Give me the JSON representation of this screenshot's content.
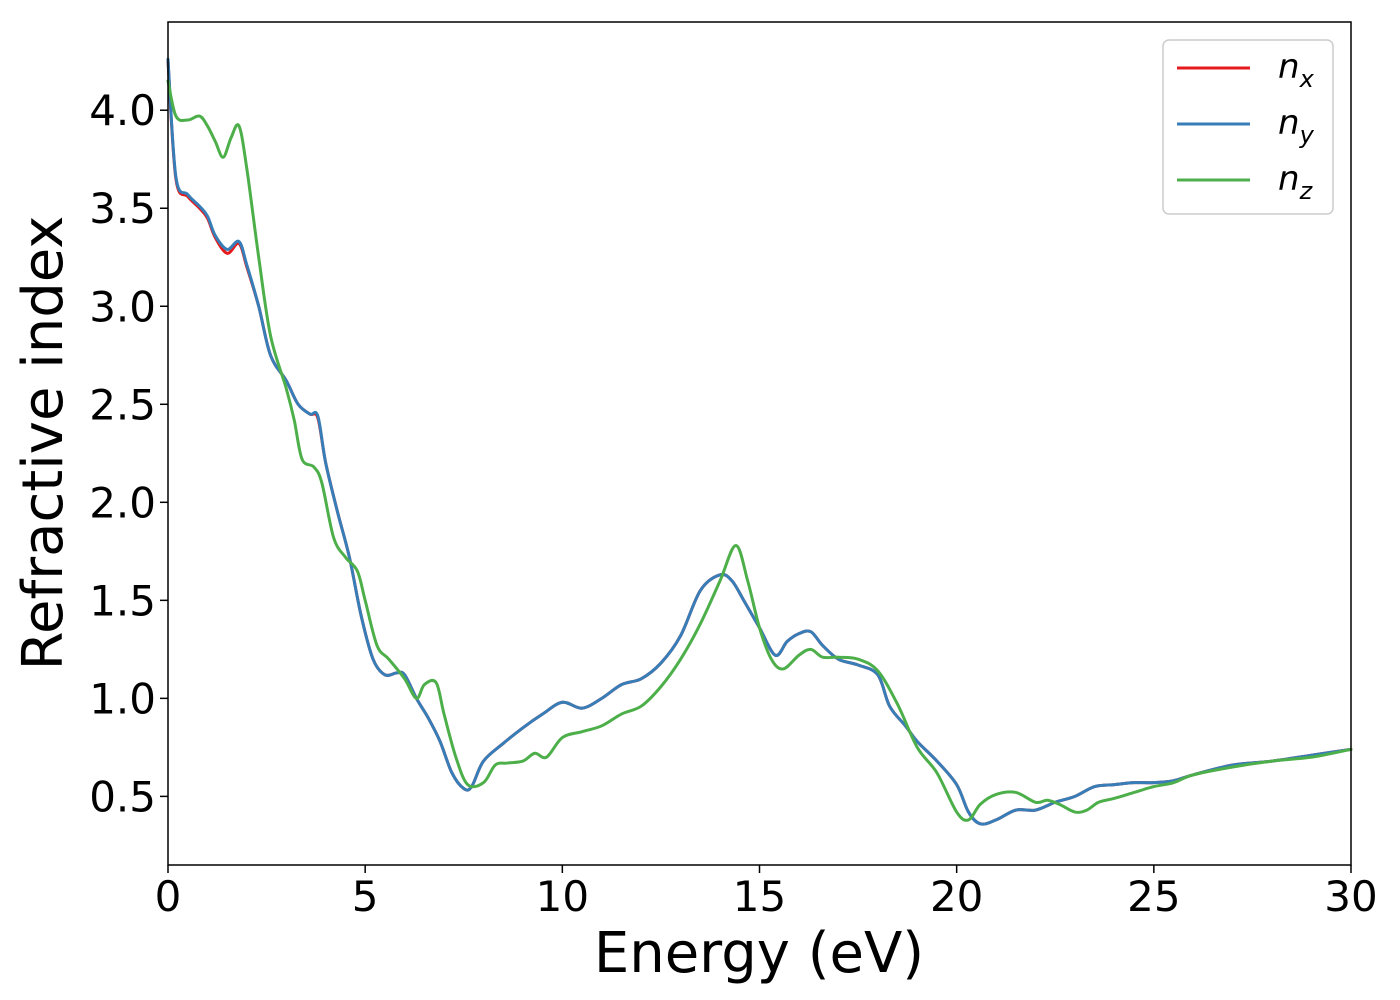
{
  "chart_data": {
    "type": "line",
    "title": "",
    "xlabel": "Energy (eV)",
    "ylabel": "Refractive index",
    "xlim": [
      0,
      30
    ],
    "ylim": [
      0.15,
      4.45
    ],
    "xticks": [
      0,
      5,
      10,
      15,
      20,
      25,
      30
    ],
    "xtick_labels": [
      "0",
      "5",
      "10",
      "15",
      "20",
      "25",
      "30"
    ],
    "yticks": [
      0.5,
      1.0,
      1.5,
      2.0,
      2.5,
      3.0,
      3.5,
      4.0
    ],
    "ytick_labels": [
      "0.5",
      "1.0",
      "1.5",
      "2.0",
      "2.5",
      "3.0",
      "3.5",
      "4.0"
    ],
    "grid": false,
    "legend_position": "top-right",
    "series": [
      {
        "name": "n",
        "subscript": "x",
        "color": "#e41a1c",
        "x": [
          0,
          0.2,
          0.5,
          0.8,
          1.0,
          1.2,
          1.5,
          1.8,
          2.0,
          2.3,
          2.6,
          3.0,
          3.3,
          3.6,
          3.8,
          4.0,
          4.3,
          4.6,
          4.9,
          5.2,
          5.5,
          5.8,
          6.0,
          6.3,
          6.6,
          6.9,
          7.2,
          7.5,
          7.7,
          8.0,
          8.5,
          9.0,
          9.5,
          10.0,
          10.5,
          11.0,
          11.5,
          12.0,
          12.5,
          13.0,
          13.5,
          14.0,
          14.3,
          14.6,
          15.0,
          15.4,
          15.7,
          16.0,
          16.3,
          16.6,
          17.0,
          17.5,
          18.0,
          18.3,
          18.7,
          19.0,
          19.5,
          20.0,
          20.3,
          20.6,
          21.0,
          21.5,
          22.0,
          22.5,
          23.0,
          23.5,
          24.0,
          24.5,
          25.0,
          25.5,
          26.0,
          27.0,
          28.0,
          29.0,
          30.0
        ],
        "y": [
          4.25,
          3.65,
          3.56,
          3.5,
          3.45,
          3.35,
          3.27,
          3.32,
          3.2,
          3.0,
          2.75,
          2.62,
          2.5,
          2.45,
          2.43,
          2.2,
          1.95,
          1.72,
          1.42,
          1.2,
          1.12,
          1.13,
          1.12,
          1.0,
          0.9,
          0.78,
          0.62,
          0.54,
          0.55,
          0.68,
          0.77,
          0.85,
          0.92,
          0.98,
          0.95,
          1.0,
          1.07,
          1.1,
          1.18,
          1.32,
          1.55,
          1.63,
          1.6,
          1.5,
          1.36,
          1.22,
          1.29,
          1.33,
          1.34,
          1.27,
          1.2,
          1.17,
          1.12,
          0.96,
          0.86,
          0.78,
          0.68,
          0.56,
          0.42,
          0.36,
          0.38,
          0.43,
          0.43,
          0.47,
          0.5,
          0.55,
          0.56,
          0.57,
          0.57,
          0.58,
          0.61,
          0.66,
          0.68,
          0.71,
          0.74
        ]
      },
      {
        "name": "n",
        "subscript": "y",
        "color": "#377eb8",
        "x": [
          0,
          0.2,
          0.5,
          0.8,
          1.0,
          1.2,
          1.5,
          1.8,
          2.0,
          2.3,
          2.6,
          3.0,
          3.3,
          3.6,
          3.8,
          4.0,
          4.3,
          4.6,
          4.9,
          5.2,
          5.5,
          5.8,
          6.0,
          6.3,
          6.6,
          6.9,
          7.2,
          7.5,
          7.7,
          8.0,
          8.5,
          9.0,
          9.5,
          10.0,
          10.5,
          11.0,
          11.5,
          12.0,
          12.5,
          13.0,
          13.5,
          14.0,
          14.3,
          14.6,
          15.0,
          15.4,
          15.7,
          16.0,
          16.3,
          16.6,
          17.0,
          17.5,
          18.0,
          18.3,
          18.7,
          19.0,
          19.5,
          20.0,
          20.3,
          20.6,
          21.0,
          21.5,
          22.0,
          22.5,
          23.0,
          23.5,
          24.0,
          24.5,
          25.0,
          25.5,
          26.0,
          27.0,
          28.0,
          29.0,
          30.0
        ],
        "y": [
          4.26,
          3.66,
          3.57,
          3.51,
          3.46,
          3.36,
          3.29,
          3.33,
          3.21,
          3.0,
          2.75,
          2.62,
          2.5,
          2.45,
          2.44,
          2.2,
          1.95,
          1.72,
          1.42,
          1.2,
          1.12,
          1.13,
          1.12,
          1.0,
          0.9,
          0.78,
          0.62,
          0.54,
          0.55,
          0.68,
          0.77,
          0.85,
          0.92,
          0.98,
          0.95,
          1.0,
          1.07,
          1.1,
          1.18,
          1.32,
          1.55,
          1.63,
          1.6,
          1.5,
          1.36,
          1.22,
          1.29,
          1.33,
          1.34,
          1.27,
          1.2,
          1.17,
          1.12,
          0.96,
          0.86,
          0.78,
          0.68,
          0.56,
          0.42,
          0.36,
          0.38,
          0.43,
          0.43,
          0.47,
          0.5,
          0.55,
          0.56,
          0.57,
          0.57,
          0.58,
          0.61,
          0.66,
          0.68,
          0.71,
          0.74
        ]
      },
      {
        "name": "n",
        "subscript": "z",
        "color": "#4daf4a",
        "x": [
          0,
          0.2,
          0.5,
          0.8,
          1.0,
          1.2,
          1.4,
          1.6,
          1.8,
          2.0,
          2.3,
          2.6,
          3.0,
          3.2,
          3.4,
          3.7,
          3.9,
          4.2,
          4.5,
          4.8,
          5.0,
          5.3,
          5.6,
          6.0,
          6.3,
          6.5,
          6.8,
          7.0,
          7.3,
          7.6,
          8.0,
          8.3,
          8.6,
          9.0,
          9.3,
          9.6,
          10.0,
          10.5,
          11.0,
          11.5,
          12.0,
          12.5,
          13.0,
          13.5,
          14.0,
          14.4,
          14.7,
          15.0,
          15.3,
          15.6,
          16.0,
          16.3,
          16.6,
          17.0,
          17.5,
          18.0,
          18.5,
          19.0,
          19.5,
          20.0,
          20.3,
          20.6,
          21.0,
          21.5,
          22.0,
          22.3,
          22.6,
          23.0,
          23.3,
          23.6,
          24.0,
          24.5,
          25.0,
          25.5,
          26.0,
          27.0,
          28.0,
          29.0,
          30.0
        ],
        "y": [
          4.15,
          3.97,
          3.95,
          3.97,
          3.92,
          3.84,
          3.76,
          3.86,
          3.92,
          3.7,
          3.25,
          2.85,
          2.58,
          2.42,
          2.22,
          2.18,
          2.1,
          1.82,
          1.72,
          1.65,
          1.5,
          1.27,
          1.2,
          1.1,
          1.0,
          1.07,
          1.08,
          0.92,
          0.7,
          0.56,
          0.57,
          0.66,
          0.67,
          0.68,
          0.72,
          0.7,
          0.8,
          0.83,
          0.86,
          0.92,
          0.96,
          1.06,
          1.2,
          1.38,
          1.6,
          1.78,
          1.6,
          1.36,
          1.2,
          1.15,
          1.22,
          1.25,
          1.21,
          1.21,
          1.2,
          1.14,
          0.97,
          0.75,
          0.62,
          0.42,
          0.38,
          0.46,
          0.51,
          0.52,
          0.47,
          0.48,
          0.46,
          0.42,
          0.43,
          0.47,
          0.49,
          0.52,
          0.55,
          0.57,
          0.61,
          0.65,
          0.68,
          0.7,
          0.74
        ]
      }
    ]
  }
}
